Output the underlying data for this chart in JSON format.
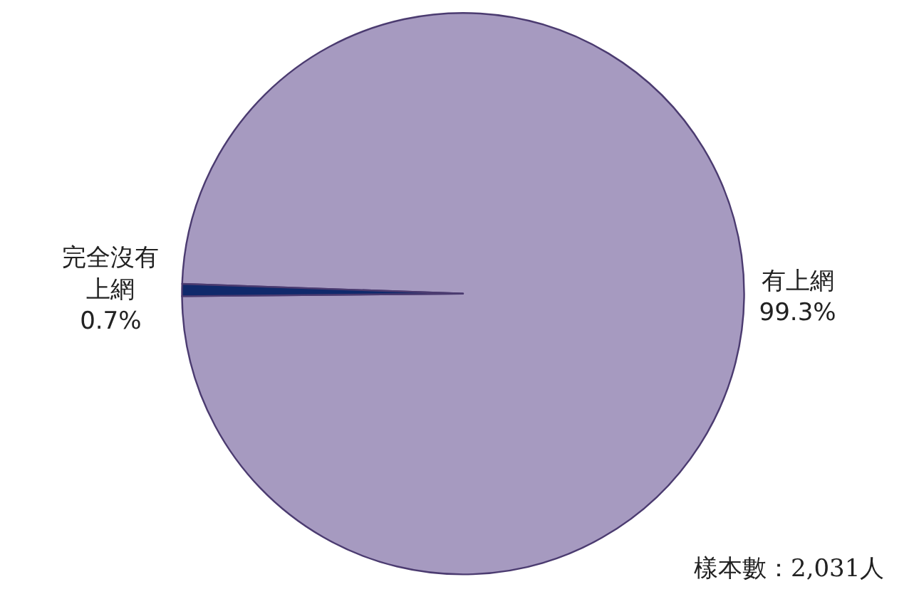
{
  "chart_data": {
    "type": "pie",
    "categories": [
      "有上網",
      "完全沒有上網"
    ],
    "values": [
      99.3,
      0.7
    ],
    "value_labels": [
      "99.3%",
      "0.7%"
    ],
    "colors": [
      "#a69ac0",
      "#10296b"
    ],
    "annotations": [
      "樣本數：2,031人"
    ],
    "legend": false
  }
}
